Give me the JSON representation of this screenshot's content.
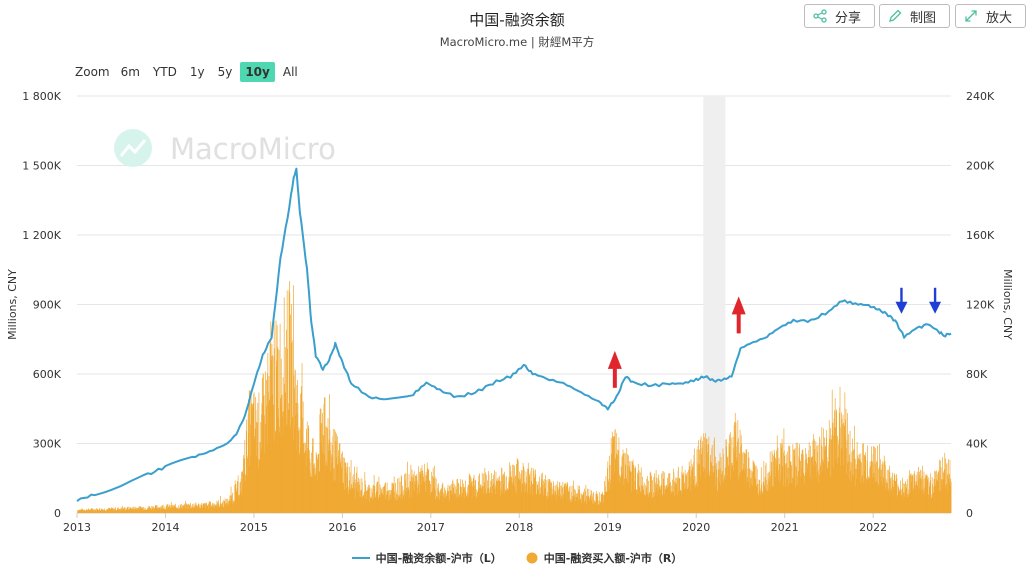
{
  "chart_data": {
    "type": "bar+line",
    "title": "中国-融资余额",
    "subtitle": "MacroMicro.me | 財經M平方",
    "watermark": "MacroMicro",
    "y_left": {
      "label": "Millions, CNY",
      "range": [
        0,
        1800000
      ],
      "ticks": [
        "0",
        "300K",
        "600K",
        "900K",
        "1 200K",
        "1 500K",
        "1 800K"
      ]
    },
    "y_right": {
      "label": "Millions, CNY",
      "range": [
        0,
        240000
      ],
      "ticks": [
        "0",
        "40K",
        "80K",
        "120K",
        "160K",
        "200K",
        "240K"
      ]
    },
    "x_range": [
      2013.0,
      2022.88
    ],
    "x_ticks": [
      "2013",
      "2014",
      "2015",
      "2016",
      "2017",
      "2018",
      "2019",
      "2020",
      "2021",
      "2022"
    ],
    "shaded_period": [
      2020.08,
      2020.33
    ],
    "series": [
      {
        "name": "中国-融资余额-沪市（L）",
        "kind": "line",
        "axis": "left",
        "color": "#3a9fcd",
        "points": [
          [
            2013.0,
            55000
          ],
          [
            2013.2,
            80000
          ],
          [
            2013.5,
            120000
          ],
          [
            2013.8,
            165000
          ],
          [
            2014.0,
            200000
          ],
          [
            2014.3,
            240000
          ],
          [
            2014.5,
            265000
          ],
          [
            2014.7,
            300000
          ],
          [
            2014.8,
            340000
          ],
          [
            2014.9,
            420000
          ],
          [
            2015.0,
            560000
          ],
          [
            2015.1,
            680000
          ],
          [
            2015.2,
            760000
          ],
          [
            2015.3,
            1100000
          ],
          [
            2015.4,
            1320000
          ],
          [
            2015.45,
            1450000
          ],
          [
            2015.48,
            1480000
          ],
          [
            2015.52,
            1300000
          ],
          [
            2015.6,
            1050000
          ],
          [
            2015.65,
            820000
          ],
          [
            2015.7,
            680000
          ],
          [
            2015.78,
            620000
          ],
          [
            2015.85,
            660000
          ],
          [
            2015.92,
            730000
          ],
          [
            2016.0,
            650000
          ],
          [
            2016.1,
            560000
          ],
          [
            2016.3,
            500000
          ],
          [
            2016.5,
            490000
          ],
          [
            2016.8,
            510000
          ],
          [
            2016.95,
            560000
          ],
          [
            2017.1,
            530000
          ],
          [
            2017.3,
            500000
          ],
          [
            2017.5,
            520000
          ],
          [
            2017.7,
            560000
          ],
          [
            2017.9,
            590000
          ],
          [
            2018.05,
            640000
          ],
          [
            2018.15,
            600000
          ],
          [
            2018.3,
            580000
          ],
          [
            2018.5,
            560000
          ],
          [
            2018.7,
            520000
          ],
          [
            2018.9,
            480000
          ],
          [
            2019.0,
            450000
          ],
          [
            2019.1,
            500000
          ],
          [
            2019.2,
            590000
          ],
          [
            2019.3,
            560000
          ],
          [
            2019.5,
            550000
          ],
          [
            2019.7,
            560000
          ],
          [
            2019.85,
            560000
          ],
          [
            2020.0,
            575000
          ],
          [
            2020.1,
            590000
          ],
          [
            2020.2,
            570000
          ],
          [
            2020.3,
            575000
          ],
          [
            2020.4,
            590000
          ],
          [
            2020.5,
            710000
          ],
          [
            2020.6,
            730000
          ],
          [
            2020.8,
            760000
          ],
          [
            2020.95,
            800000
          ],
          [
            2021.1,
            830000
          ],
          [
            2021.3,
            830000
          ],
          [
            2021.5,
            870000
          ],
          [
            2021.65,
            915000
          ],
          [
            2021.8,
            900000
          ],
          [
            2021.95,
            895000
          ],
          [
            2022.05,
            880000
          ],
          [
            2022.15,
            860000
          ],
          [
            2022.25,
            830000
          ],
          [
            2022.35,
            760000
          ],
          [
            2022.5,
            800000
          ],
          [
            2022.62,
            815000
          ],
          [
            2022.72,
            790000
          ],
          [
            2022.8,
            765000
          ],
          [
            2022.88,
            775000
          ]
        ]
      },
      {
        "name": "中国-融资买入额-沪市（R）",
        "kind": "bar",
        "axis": "right",
        "color": "#f0a933",
        "envelope": [
          [
            2013.0,
            2500
          ],
          [
            2013.5,
            3500
          ],
          [
            2013.8,
            4500
          ],
          [
            2014.0,
            5000
          ],
          [
            2014.3,
            6000
          ],
          [
            2014.5,
            6500
          ],
          [
            2014.7,
            9000
          ],
          [
            2014.85,
            22000
          ],
          [
            2014.95,
            75000
          ],
          [
            2015.05,
            70000
          ],
          [
            2015.2,
            105000
          ],
          [
            2015.3,
            120000
          ],
          [
            2015.4,
            135000
          ],
          [
            2015.5,
            80000
          ],
          [
            2015.6,
            60000
          ],
          [
            2015.7,
            35000
          ],
          [
            2015.78,
            80000
          ],
          [
            2015.85,
            55000
          ],
          [
            2015.95,
            45000
          ],
          [
            2016.1,
            25000
          ],
          [
            2016.3,
            18000
          ],
          [
            2016.6,
            20000
          ],
          [
            2016.95,
            30000
          ],
          [
            2017.1,
            17000
          ],
          [
            2017.4,
            22000
          ],
          [
            2017.7,
            25000
          ],
          [
            2017.95,
            32000
          ],
          [
            2018.1,
            30000
          ],
          [
            2018.3,
            22000
          ],
          [
            2018.6,
            17000
          ],
          [
            2018.95,
            12000
          ],
          [
            2019.05,
            50000
          ],
          [
            2019.15,
            45000
          ],
          [
            2019.3,
            30000
          ],
          [
            2019.5,
            23000
          ],
          [
            2019.7,
            25000
          ],
          [
            2019.9,
            30000
          ],
          [
            2020.1,
            50000
          ],
          [
            2020.25,
            30000
          ],
          [
            2020.45,
            60000
          ],
          [
            2020.55,
            40000
          ],
          [
            2020.7,
            28000
          ],
          [
            2020.95,
            45000
          ],
          [
            2021.1,
            40000
          ],
          [
            2021.3,
            45000
          ],
          [
            2021.5,
            55000
          ],
          [
            2021.65,
            80000
          ],
          [
            2021.75,
            45000
          ],
          [
            2021.9,
            40000
          ],
          [
            2022.05,
            42000
          ],
          [
            2022.2,
            25000
          ],
          [
            2022.35,
            20000
          ],
          [
            2022.5,
            28000
          ],
          [
            2022.65,
            20000
          ],
          [
            2022.75,
            35000
          ],
          [
            2022.88,
            30000
          ]
        ]
      }
    ],
    "annotations": [
      {
        "type": "arrow-up",
        "color": "#e0262c",
        "x": 2019.08,
        "y_left": 700000
      },
      {
        "type": "arrow-up",
        "color": "#e0262c",
        "x": 2020.48,
        "y_left": 935000
      },
      {
        "type": "arrow-down",
        "color": "#1e3fd6",
        "x": 2022.32,
        "y_left": 860000
      },
      {
        "type": "arrow-down",
        "color": "#1e3fd6",
        "x": 2022.7,
        "y_left": 860000
      }
    ],
    "legend": {
      "position": "bottom-center"
    },
    "grid": true
  },
  "toolbar": {
    "share": "分享",
    "draw": "制图",
    "zoom": "放大"
  },
  "range_selector": {
    "label": "Zoom",
    "buttons": [
      "6m",
      "YTD",
      "1y",
      "5y",
      "10y",
      "All"
    ],
    "active": "10y"
  },
  "legend_items": {
    "line": "中国-融资余额-沪市（L）",
    "bar": "中国-融资买入额-沪市（R）"
  }
}
